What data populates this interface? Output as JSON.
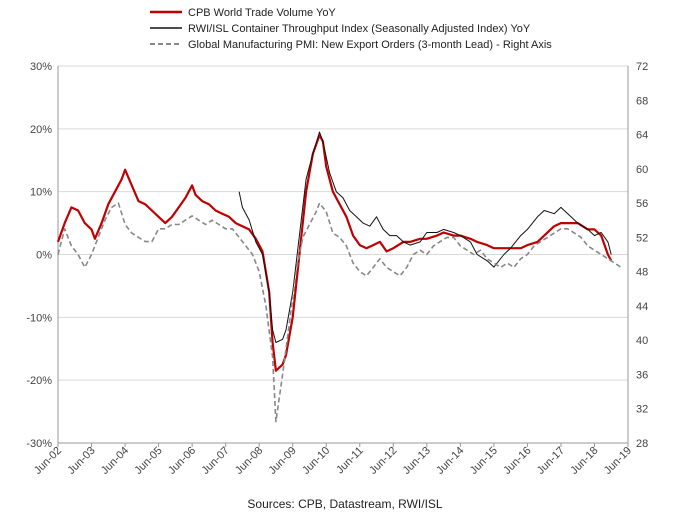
{
  "chart_data": {
    "type": "line",
    "title": "",
    "source": "Sources: CPB, Datastream, RWI/ISL",
    "colors": {
      "cpb": "#c00000",
      "rwi": "#111111",
      "pmi": "#888888",
      "grid": "#d9d9d9",
      "axis": "#999999"
    },
    "x_labels": [
      "Jun-02",
      "Jun-03",
      "Jun-04",
      "Jun-05",
      "Jun-06",
      "Jun-07",
      "Jun-08",
      "Jun-09",
      "Jun-10",
      "Jun-11",
      "Jun-12",
      "Jun-13",
      "Jun-14",
      "Jun-15",
      "Jun-16",
      "Jun-17",
      "Jun-18",
      "Jun-19"
    ],
    "x_range": [
      2002.5,
      2019.5
    ],
    "y_left": {
      "range": [
        -30,
        30
      ],
      "ticks": [
        -30,
        -20,
        -10,
        0,
        10,
        20,
        30
      ],
      "tick_labels": [
        "-30%",
        "-20%",
        "-10%",
        "0%",
        "10%",
        "20%",
        "30%"
      ]
    },
    "y_right": {
      "range": [
        28,
        72
      ],
      "ticks": [
        28,
        32,
        36,
        40,
        44,
        48,
        52,
        56,
        60,
        64,
        68,
        72
      ],
      "tick_labels": [
        "28",
        "32",
        "36",
        "40",
        "44",
        "48",
        "52",
        "56",
        "60",
        "64",
        "68",
        "72"
      ]
    },
    "legend": [
      {
        "name": "CPB World Trade Volume YoY",
        "style": "solid-thick"
      },
      {
        "name": "RWI/ISL Container Throughput Index (Seasonally Adjusted Index) YoY",
        "style": "solid-thin"
      },
      {
        "name": "Global Manufacturing PMI: New Export Orders (3-month Lead) - Right Axis",
        "style": "dashed"
      }
    ],
    "series": [
      {
        "name": "CPB World Trade Volume YoY",
        "axis": "left",
        "points": [
          [
            2002.5,
            2
          ],
          [
            2002.7,
            5
          ],
          [
            2002.9,
            7.5
          ],
          [
            2003.1,
            7
          ],
          [
            2003.3,
            5
          ],
          [
            2003.5,
            4
          ],
          [
            2003.6,
            2.5
          ],
          [
            2003.8,
            5
          ],
          [
            2004.0,
            8
          ],
          [
            2004.2,
            10
          ],
          [
            2004.4,
            12
          ],
          [
            2004.5,
            13.5
          ],
          [
            2004.7,
            11
          ],
          [
            2004.9,
            8.5
          ],
          [
            2005.1,
            8
          ],
          [
            2005.3,
            7
          ],
          [
            2005.5,
            6
          ],
          [
            2005.7,
            5
          ],
          [
            2005.9,
            6
          ],
          [
            2006.1,
            7.5
          ],
          [
            2006.3,
            9
          ],
          [
            2006.5,
            11
          ],
          [
            2006.6,
            9.5
          ],
          [
            2006.8,
            8.5
          ],
          [
            2007.0,
            8
          ],
          [
            2007.2,
            7
          ],
          [
            2007.4,
            6.5
          ],
          [
            2007.6,
            6
          ],
          [
            2007.8,
            5
          ],
          [
            2008.0,
            4.5
          ],
          [
            2008.2,
            4
          ],
          [
            2008.4,
            2.5
          ],
          [
            2008.6,
            0.5
          ],
          [
            2008.8,
            -6
          ],
          [
            2008.9,
            -14
          ],
          [
            2009.0,
            -18.5
          ],
          [
            2009.2,
            -17.5
          ],
          [
            2009.3,
            -16
          ],
          [
            2009.5,
            -10
          ],
          [
            2009.7,
            0
          ],
          [
            2009.9,
            10
          ],
          [
            2010.1,
            16
          ],
          [
            2010.3,
            19
          ],
          [
            2010.4,
            18
          ],
          [
            2010.5,
            14
          ],
          [
            2010.7,
            10
          ],
          [
            2010.9,
            8
          ],
          [
            2011.1,
            6
          ],
          [
            2011.3,
            3
          ],
          [
            2011.5,
            1.5
          ],
          [
            2011.7,
            1
          ],
          [
            2011.9,
            1.5
          ],
          [
            2012.1,
            2
          ],
          [
            2012.3,
            0.5
          ],
          [
            2012.5,
            1
          ],
          [
            2012.8,
            2
          ],
          [
            2013.0,
            2
          ],
          [
            2013.3,
            2.5
          ],
          [
            2013.5,
            2.5
          ],
          [
            2013.8,
            3
          ],
          [
            2014.0,
            3.5
          ],
          [
            2014.3,
            3
          ],
          [
            2014.5,
            3
          ],
          [
            2014.8,
            2.5
          ],
          [
            2015.0,
            2
          ],
          [
            2015.3,
            1.5
          ],
          [
            2015.5,
            1
          ],
          [
            2015.8,
            1
          ],
          [
            2016.0,
            1
          ],
          [
            2016.3,
            1
          ],
          [
            2016.5,
            1.5
          ],
          [
            2016.8,
            2
          ],
          [
            2017.0,
            3
          ],
          [
            2017.3,
            4.5
          ],
          [
            2017.5,
            5
          ],
          [
            2017.8,
            5
          ],
          [
            2018.0,
            5
          ],
          [
            2018.3,
            4
          ],
          [
            2018.5,
            4
          ],
          [
            2018.7,
            3
          ],
          [
            2018.9,
            0
          ],
          [
            2019.0,
            -1
          ]
        ]
      },
      {
        "name": "RWI/ISL Container Throughput Index (Seasonally Adjusted Index) YoY",
        "axis": "left",
        "points": [
          [
            2007.9,
            10
          ],
          [
            2008.0,
            7.5
          ],
          [
            2008.2,
            5.5
          ],
          [
            2008.4,
            2
          ],
          [
            2008.6,
            0
          ],
          [
            2008.8,
            -6
          ],
          [
            2008.9,
            -12
          ],
          [
            2009.0,
            -14
          ],
          [
            2009.2,
            -13.5
          ],
          [
            2009.3,
            -12
          ],
          [
            2009.5,
            -6
          ],
          [
            2009.7,
            3
          ],
          [
            2009.9,
            12
          ],
          [
            2010.1,
            16
          ],
          [
            2010.3,
            19.5
          ],
          [
            2010.4,
            18
          ],
          [
            2010.6,
            13
          ],
          [
            2010.8,
            10
          ],
          [
            2011.0,
            9
          ],
          [
            2011.2,
            7
          ],
          [
            2011.4,
            6
          ],
          [
            2011.6,
            5
          ],
          [
            2011.8,
            4.5
          ],
          [
            2012.0,
            6
          ],
          [
            2012.2,
            4
          ],
          [
            2012.4,
            3
          ],
          [
            2012.6,
            3
          ],
          [
            2012.8,
            2
          ],
          [
            2013.0,
            1.5
          ],
          [
            2013.3,
            2
          ],
          [
            2013.5,
            3.5
          ],
          [
            2013.8,
            3.5
          ],
          [
            2014.0,
            4
          ],
          [
            2014.3,
            3.5
          ],
          [
            2014.5,
            3
          ],
          [
            2014.8,
            2
          ],
          [
            2015.0,
            0
          ],
          [
            2015.3,
            -1
          ],
          [
            2015.5,
            -2
          ],
          [
            2015.8,
            0
          ],
          [
            2016.0,
            1
          ],
          [
            2016.3,
            3
          ],
          [
            2016.5,
            4
          ],
          [
            2016.8,
            6
          ],
          [
            2017.0,
            7
          ],
          [
            2017.3,
            6.5
          ],
          [
            2017.5,
            7.5
          ],
          [
            2017.8,
            6
          ],
          [
            2018.0,
            5
          ],
          [
            2018.3,
            4
          ],
          [
            2018.5,
            3
          ],
          [
            2018.7,
            3.5
          ],
          [
            2018.9,
            2
          ],
          [
            2019.0,
            0
          ]
        ]
      },
      {
        "name": "Global Manufacturing PMI: New Export Orders (3-month Lead) - Right Axis",
        "axis": "right",
        "points": [
          [
            2002.5,
            50
          ],
          [
            2002.7,
            53
          ],
          [
            2002.9,
            51
          ],
          [
            2003.1,
            50
          ],
          [
            2003.3,
            48.5
          ],
          [
            2003.5,
            50
          ],
          [
            2003.7,
            52
          ],
          [
            2003.9,
            54
          ],
          [
            2004.1,
            55.5
          ],
          [
            2004.3,
            56
          ],
          [
            2004.5,
            53.5
          ],
          [
            2004.7,
            52.5
          ],
          [
            2004.9,
            52
          ],
          [
            2005.1,
            51.5
          ],
          [
            2005.3,
            51.5
          ],
          [
            2005.5,
            53
          ],
          [
            2005.7,
            53
          ],
          [
            2005.9,
            53.5
          ],
          [
            2006.1,
            53.5
          ],
          [
            2006.3,
            54
          ],
          [
            2006.5,
            54.5
          ],
          [
            2006.7,
            54
          ],
          [
            2006.9,
            53.5
          ],
          [
            2007.1,
            54
          ],
          [
            2007.3,
            53.5
          ],
          [
            2007.5,
            53
          ],
          [
            2007.7,
            53
          ],
          [
            2007.9,
            52
          ],
          [
            2008.1,
            51
          ],
          [
            2008.3,
            50
          ],
          [
            2008.5,
            48
          ],
          [
            2008.7,
            44
          ],
          [
            2008.9,
            38
          ],
          [
            2009.0,
            30.5
          ],
          [
            2009.2,
            36
          ],
          [
            2009.4,
            42
          ],
          [
            2009.6,
            48
          ],
          [
            2009.8,
            52
          ],
          [
            2010.0,
            53.5
          ],
          [
            2010.2,
            55
          ],
          [
            2010.3,
            56
          ],
          [
            2010.5,
            55
          ],
          [
            2010.7,
            52.5
          ],
          [
            2010.9,
            52
          ],
          [
            2011.1,
            51
          ],
          [
            2011.3,
            49
          ],
          [
            2011.5,
            48
          ],
          [
            2011.7,
            47.5
          ],
          [
            2011.9,
            48.5
          ],
          [
            2012.1,
            49.5
          ],
          [
            2012.3,
            48.5
          ],
          [
            2012.5,
            48
          ],
          [
            2012.7,
            47.5
          ],
          [
            2012.9,
            48.5
          ],
          [
            2013.1,
            50
          ],
          [
            2013.3,
            50.5
          ],
          [
            2013.5,
            50
          ],
          [
            2013.7,
            51
          ],
          [
            2013.9,
            51.5
          ],
          [
            2014.1,
            52
          ],
          [
            2014.3,
            52
          ],
          [
            2014.5,
            51
          ],
          [
            2014.7,
            50.5
          ],
          [
            2014.9,
            50
          ],
          [
            2015.1,
            50.5
          ],
          [
            2015.3,
            49.5
          ],
          [
            2015.5,
            49
          ],
          [
            2015.7,
            48.5
          ],
          [
            2015.9,
            49
          ],
          [
            2016.1,
            48.5
          ],
          [
            2016.3,
            49.5
          ],
          [
            2016.5,
            50
          ],
          [
            2016.7,
            51
          ],
          [
            2016.9,
            51.5
          ],
          [
            2017.1,
            52
          ],
          [
            2017.3,
            52.5
          ],
          [
            2017.5,
            53
          ],
          [
            2017.7,
            53
          ],
          [
            2017.9,
            52.5
          ],
          [
            2018.1,
            52
          ],
          [
            2018.3,
            51
          ],
          [
            2018.5,
            50.5
          ],
          [
            2018.7,
            50
          ],
          [
            2018.9,
            49.5
          ],
          [
            2019.1,
            49
          ],
          [
            2019.3,
            48.5
          ]
        ]
      }
    ]
  }
}
